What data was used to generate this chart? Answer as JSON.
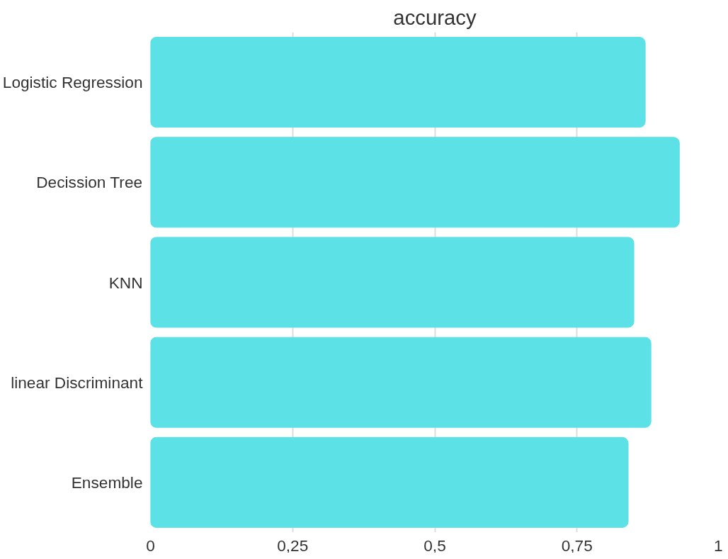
{
  "chart_data": {
    "type": "bar",
    "orientation": "horizontal",
    "title": "accuracy",
    "categories": [
      "Logistic Regression",
      "Decission Tree",
      "KNN",
      "linear Discriminant",
      "Ensemble"
    ],
    "values": [
      0.87,
      0.93,
      0.85,
      0.88,
      0.84
    ],
    "color": "#5ce1e6",
    "xlim": [
      0,
      1
    ],
    "xticks": [
      0,
      {
        "value": 0.25,
        "label": "0,25"
      },
      {
        "value": 0.5,
        "label": "0,5"
      },
      {
        "value": 0.75,
        "label": "0,75"
      },
      1
    ],
    "grid": "x"
  }
}
